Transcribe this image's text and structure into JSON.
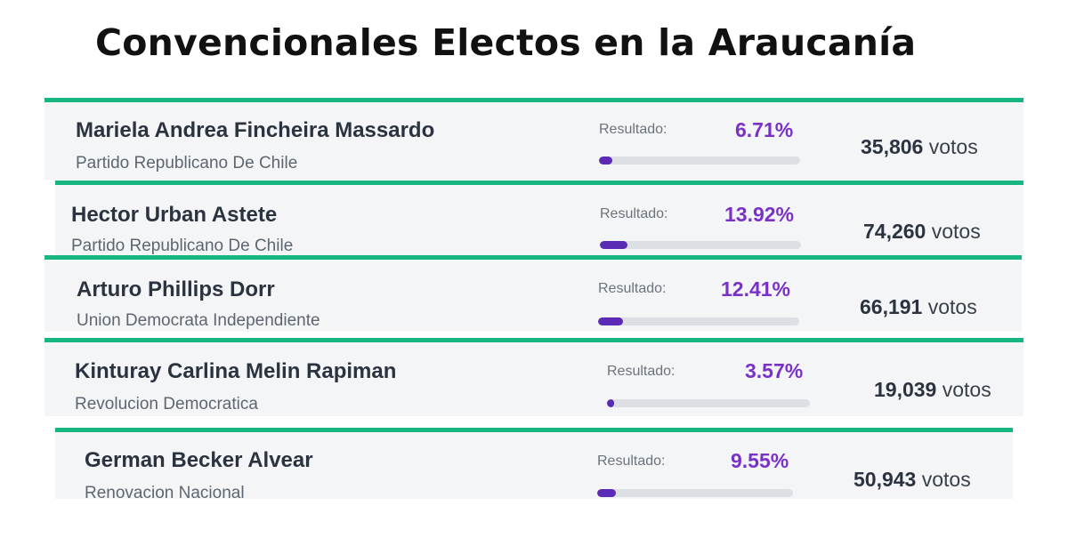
{
  "page": {
    "title": "Convencionales Electos en la Araucanía"
  },
  "result_label": "Resultado:",
  "votes_unit": "votos",
  "accent_color": "#17b57f",
  "percent_color": "#7a31c8",
  "bar_color": "#5b2bb5",
  "candidates": [
    {
      "name": "Mariela Andrea Fincheira Massardo",
      "party": "Partido Republicano De Chile",
      "percent": "6.71%",
      "percent_value": 6.71,
      "votes": "35,806"
    },
    {
      "name": "Hector Urban Astete",
      "party": "Partido Republicano De Chile",
      "percent": "13.92%",
      "percent_value": 13.92,
      "votes": "74,260"
    },
    {
      "name": "Arturo Phillips Dorr",
      "party": "Union Democrata Independiente",
      "percent": "12.41%",
      "percent_value": 12.41,
      "votes": "66,191"
    },
    {
      "name": "Kinturay Carlina Melin Rapiman",
      "party": "Revolucion Democratica",
      "percent": "3.57%",
      "percent_value": 3.57,
      "votes": "19,039"
    },
    {
      "name": "German Becker Alvear",
      "party": "Renovacion Nacional",
      "percent": "9.55%",
      "percent_value": 9.55,
      "votes": "50,943"
    }
  ]
}
